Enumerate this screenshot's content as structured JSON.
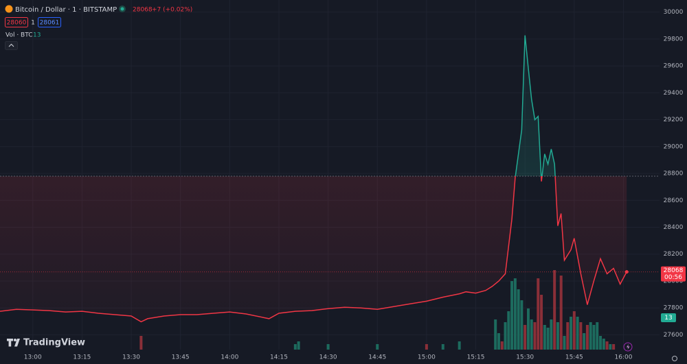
{
  "chart_data": {
    "type": "baseline",
    "title": "Bitcoin / Dollar · 1 · BITSTAMP",
    "last_price": 28068,
    "change_label": "+7 (+0.02%)",
    "bid": 28060,
    "spread": 1,
    "ask": 28061,
    "volume_label": "Vol · BTC",
    "last_volume": 13,
    "countdown": "00:56",
    "brand": "TradingView",
    "baseline": 28780,
    "above_color": "#22ab94",
    "below_color": "#f23645",
    "xlim": [
      "12:50",
      "16:11"
    ],
    "xticks": [
      "13:00",
      "13:15",
      "13:30",
      "13:45",
      "14:00",
      "14:15",
      "14:30",
      "14:45",
      "15:00",
      "15:15",
      "15:30",
      "15:45",
      "16:00"
    ],
    "ylim": [
      27490,
      30090
    ],
    "yticks": [
      27600,
      27800,
      28000,
      28200,
      28400,
      28600,
      28800,
      29000,
      29200,
      29400,
      29600,
      29800,
      30000
    ],
    "grid": true,
    "x": [
      "12:50",
      "12:55",
      "13:00",
      "13:05",
      "13:10",
      "13:15",
      "13:20",
      "13:25",
      "13:30",
      "13:33",
      "13:35",
      "13:40",
      "13:45",
      "13:50",
      "13:55",
      "14:00",
      "14:05",
      "14:12",
      "14:15",
      "14:20",
      "14:25",
      "14:30",
      "14:35",
      "14:40",
      "14:45",
      "14:50",
      "14:55",
      "15:00",
      "15:05",
      "15:10",
      "15:12",
      "15:15",
      "15:18",
      "15:20",
      "15:22",
      "15:24",
      "15:26",
      "15:27",
      "15:29",
      "15:30",
      "15:31",
      "15:32",
      "15:33",
      "15:34",
      "15:35",
      "15:36",
      "15:37",
      "15:38",
      "15:39",
      "15:40",
      "15:41",
      "15:42",
      "15:44",
      "15:45",
      "15:47",
      "15:49",
      "15:51",
      "15:53",
      "15:55",
      "15:57",
      "15:59",
      "16:01"
    ],
    "values": [
      27775,
      27790,
      27785,
      27780,
      27770,
      27775,
      27760,
      27750,
      27740,
      27697,
      27720,
      27740,
      27750,
      27750,
      27760,
      27770,
      27755,
      27720,
      27760,
      27775,
      27780,
      27795,
      27805,
      27800,
      27790,
      27810,
      27830,
      27850,
      27880,
      27905,
      27920,
      27910,
      27930,
      27960,
      28000,
      28054,
      28461,
      28767,
      29124,
      29827,
      29582,
      29353,
      29200,
      29225,
      28741,
      28945,
      28869,
      28981,
      28869,
      28410,
      28502,
      28155,
      28232,
      28318,
      28054,
      27824,
      28003,
      28166,
      28054,
      28094,
      27977,
      28068
    ],
    "volume": {
      "x": [
        "13:33",
        "14:20",
        "14:21",
        "14:30",
        "14:45",
        "15:00",
        "15:05",
        "15:10",
        "15:21",
        "15:22",
        "15:23",
        "15:24",
        "15:25",
        "15:26",
        "15:27",
        "15:28",
        "15:29",
        "15:30",
        "15:31",
        "15:32",
        "15:33",
        "15:34",
        "15:35",
        "15:36",
        "15:37",
        "15:38",
        "15:39",
        "15:40",
        "15:41",
        "15:42",
        "15:43",
        "15:44",
        "15:45",
        "15:46",
        "15:47",
        "15:48",
        "15:49",
        "15:50",
        "15:51",
        "15:52",
        "15:53",
        "15:54",
        "15:55",
        "15:56",
        "15:57"
      ],
      "values": [
        5,
        2,
        3,
        2,
        2,
        2,
        2,
        3,
        11,
        6,
        3,
        10,
        14,
        25,
        26,
        22,
        18,
        9,
        15,
        11,
        10,
        26,
        20,
        9,
        8,
        11,
        29,
        10,
        27,
        5,
        10,
        12,
        14,
        12,
        10,
        6,
        9,
        10,
        9,
        10,
        5,
        4,
        3,
        2,
        2
      ],
      "colors": [
        "#8a2f38",
        "#1d6b5e",
        "#1d6b5e",
        "#1d6b5e",
        "#1d6b5e",
        "#8a2f38",
        "#1d6b5e",
        "#1d6b5e",
        "#1d6b5e",
        "#1d6b5e",
        "#8a2f38",
        "#1d6b5e",
        "#1d6b5e",
        "#1d6b5e",
        "#1d6b5e",
        "#1d6b5e",
        "#1d6b5e",
        "#8a2f38",
        "#1d6b5e",
        "#1d6b5e",
        "#8a2f38",
        "#8a2f38",
        "#8a2f38",
        "#1d6b5e",
        "#1d6b5e",
        "#1d6b5e",
        "#8a2f38",
        "#1d6b5e",
        "#8a2f38",
        "#1d6b5e",
        "#8a2f38",
        "#1d6b5e",
        "#8a2f38",
        "#1d6b5e",
        "#8a2f38",
        "#1d6b5e",
        "#8a2f38",
        "#1d6b5e",
        "#1d6b5e",
        "#1d6b5e",
        "#1d6b5e",
        "#1d6b5e",
        "#8a2f38",
        "#1d6b5e",
        "#8a2f38"
      ]
    }
  }
}
